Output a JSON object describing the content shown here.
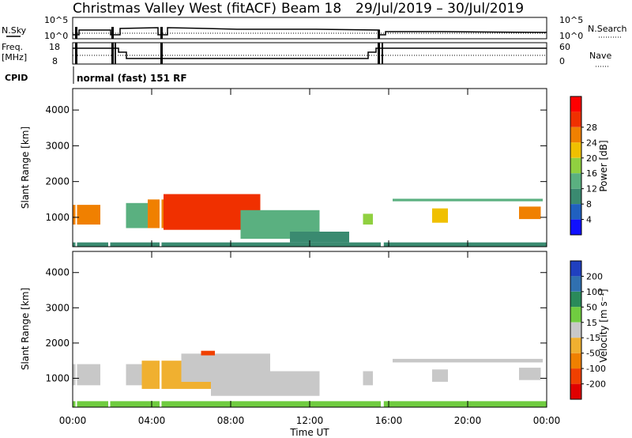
{
  "header": {
    "station": "Christmas Valley West (fitACF)",
    "beam": "Beam 18",
    "date_range": "29/Jul/2019 – 30/Jul/2019"
  },
  "aux_panels": {
    "nsky_label": "N.Sky",
    "nsky_top_tick": "10^5",
    "nsky_bottom_tick": "10^0",
    "nsearch_label": "N.Search",
    "nsearch_top_tick": "10^5",
    "nsearch_bottom_tick": "10^0",
    "freq_label_line1": "Freq.",
    "freq_label_line2": "[MHz]",
    "freq_top_tick": "18",
    "freq_bottom_tick": "8",
    "nave_label": "Nave",
    "nave_top_tick": "60",
    "nave_bottom_tick": "0",
    "cpid_label": "CPID",
    "cpid_value": "normal (fast) 151 RF"
  },
  "xaxis": {
    "label": "Time UT",
    "ticks": [
      "00:00",
      "04:00",
      "08:00",
      "12:00",
      "16:00",
      "20:00",
      "00:00"
    ],
    "range_hours": [
      0,
      24
    ]
  },
  "power_panel": {
    "ylabel": "Slant Range [km]",
    "yticks": [
      "1000",
      "2000",
      "3000",
      "4000"
    ],
    "colorbar_label": "Power [dB]",
    "colorbar_ticks": [
      "4",
      "8",
      "12",
      "16",
      "20",
      "24",
      "28"
    ],
    "colors": [
      "#1010ff",
      "#2060c0",
      "#3a8a70",
      "#5ab080",
      "#90d040",
      "#f0c000",
      "#f08000",
      "#f03000",
      "#ff0000"
    ]
  },
  "velocity_panel": {
    "ylabel": "Slant Range [km]",
    "yticks": [
      "1000",
      "2000",
      "3000",
      "4000"
    ],
    "colorbar_label": "Velocity [m s⁻¹]",
    "colorbar_ticks": [
      "200",
      "100",
      "50",
      "15",
      "-15",
      "-50",
      "-100",
      "-200"
    ],
    "colors": [
      "#2040c0",
      "#3070b0",
      "#2a8a5a",
      "#70cc40",
      "#c8c8c8",
      "#f0b030",
      "#f08000",
      "#f04000",
      "#e00000"
    ]
  },
  "chart_data": [
    {
      "type": "heatmap",
      "title": "",
      "xlabel": "Time UT",
      "ylabel": "Slant Range [km]",
      "xlim": [
        0,
        24
      ],
      "ylim": [
        180,
        4600
      ],
      "colorbar": "Power [dB]",
      "value_range": [
        0,
        30
      ],
      "regions": [
        {
          "t0": 0.0,
          "t1": 1.4,
          "r0": 800,
          "r1": 1350,
          "value": 22
        },
        {
          "t0": 2.7,
          "t1": 3.8,
          "r0": 700,
          "r1": 1400,
          "value": 10
        },
        {
          "t0": 3.8,
          "t1": 5.2,
          "r0": 700,
          "r1": 1500,
          "value": 24
        },
        {
          "t0": 4.6,
          "t1": 9.5,
          "r0": 650,
          "r1": 1650,
          "value": 28
        },
        {
          "t0": 8.5,
          "t1": 12.5,
          "r0": 400,
          "r1": 1200,
          "value": 12
        },
        {
          "t0": 11.0,
          "t1": 14.0,
          "r0": 300,
          "r1": 600,
          "value": 8
        },
        {
          "t0": 14.7,
          "t1": 15.2,
          "r0": 800,
          "r1": 1100,
          "value": 16
        },
        {
          "t0": 16.2,
          "t1": 23.8,
          "r0": 1450,
          "r1": 1520,
          "value": 10
        },
        {
          "t0": 18.2,
          "t1": 19.0,
          "r0": 850,
          "r1": 1250,
          "value": 20
        },
        {
          "t0": 22.6,
          "t1": 23.7,
          "r0": 950,
          "r1": 1300,
          "value": 22
        },
        {
          "t0": 0.0,
          "t1": 24.0,
          "r0": 180,
          "r1": 300,
          "value": 6
        }
      ]
    },
    {
      "type": "heatmap",
      "title": "",
      "xlabel": "Time UT",
      "ylabel": "Slant Range [km]",
      "xlim": [
        0,
        24
      ],
      "ylim": [
        180,
        4600
      ],
      "colorbar": "Velocity [m s⁻¹]",
      "value_range": [
        -200,
        200
      ],
      "regions": [
        {
          "t0": 0.0,
          "t1": 1.4,
          "r0": 800,
          "r1": 1400,
          "value": 0
        },
        {
          "t0": 2.7,
          "t1": 3.8,
          "r0": 800,
          "r1": 1400,
          "value": 0
        },
        {
          "t0": 3.5,
          "t1": 7.0,
          "r0": 700,
          "r1": 1500,
          "value": -40
        },
        {
          "t0": 5.5,
          "t1": 10.0,
          "r0": 900,
          "r1": 1700,
          "value": 20
        },
        {
          "t0": 7.0,
          "t1": 12.5,
          "r0": 500,
          "r1": 1200,
          "value": 0
        },
        {
          "t0": 6.5,
          "t1": 7.2,
          "r0": 1650,
          "r1": 1780,
          "value": -150
        },
        {
          "t0": 14.7,
          "t1": 15.2,
          "r0": 800,
          "r1": 1200,
          "value": 0
        },
        {
          "t0": 16.2,
          "t1": 23.8,
          "r0": 1450,
          "r1": 1550,
          "value": 0
        },
        {
          "t0": 18.2,
          "t1": 19.0,
          "r0": 900,
          "r1": 1250,
          "value": 0
        },
        {
          "t0": 22.6,
          "t1": 23.7,
          "r0": 950,
          "r1": 1300,
          "value": 0
        },
        {
          "t0": 0.0,
          "t1": 24.0,
          "r0": 180,
          "r1": 350,
          "value": 30
        }
      ]
    }
  ]
}
